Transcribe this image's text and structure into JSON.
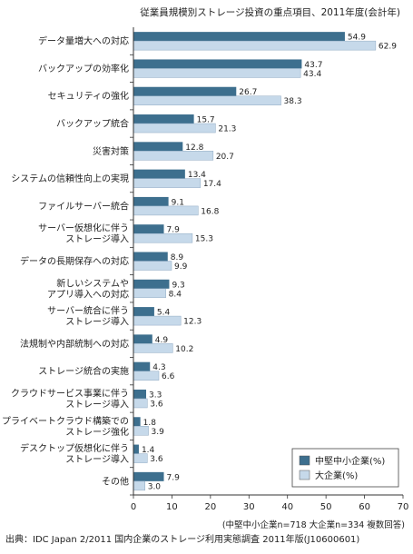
{
  "chart_data": {
    "type": "bar",
    "orientation": "horizontal",
    "title": "従業員規模別ストレージ投資の重点項目、2011年度(会計年)",
    "categories": [
      [
        "データ量増大への対応"
      ],
      [
        "バックアップの効率化"
      ],
      [
        "セキュリティの強化"
      ],
      [
        "バックアップ統合"
      ],
      [
        "災害対策"
      ],
      [
        "システムの信頼性向上の実現"
      ],
      [
        "ファイルサーバー統合"
      ],
      [
        "サーバー仮想化に伴う",
        "ストレージ導入"
      ],
      [
        "データの長期保存への対応"
      ],
      [
        "新しいシステムや",
        "アプリ導入への対応"
      ],
      [
        "サーバー統合に伴う",
        "ストレージ導入"
      ],
      [
        "法規制や内部統制への対応"
      ],
      [
        "ストレージ統合の実施"
      ],
      [
        "クラウドサービス事業に伴う",
        "ストレージ導入"
      ],
      [
        "プライベートクラウド構築での",
        "ストレージ強化"
      ],
      [
        "デスクトップ仮想化に伴う",
        "ストレージ導入"
      ],
      [
        "その他"
      ]
    ],
    "series": [
      {
        "name": "中堅中小企業(%)",
        "color": "#3d6f8e",
        "values": [
          54.9,
          43.7,
          26.7,
          15.7,
          12.8,
          13.4,
          9.1,
          7.9,
          8.9,
          9.3,
          5.4,
          4.9,
          4.3,
          3.3,
          1.8,
          1.4,
          7.9
        ]
      },
      {
        "name": "大企業(%)",
        "color": "#c6d9ea",
        "values": [
          62.9,
          43.4,
          38.3,
          21.3,
          20.7,
          17.4,
          16.8,
          15.3,
          9.9,
          8.4,
          12.3,
          10.2,
          6.6,
          3.6,
          3.9,
          3.6,
          3.0
        ]
      }
    ],
    "xlim": [
      0,
      70
    ],
    "xticks": [
      0,
      10,
      20,
      30,
      40,
      50,
      60,
      70
    ],
    "legend_position": "bottom-right",
    "grid": false,
    "note": "(中堅中小企業n=718 大企業n=334 複数回答)",
    "source": "出典：IDC Japan 2/2011 国内企業のストレージ利用実態調査 2011年版(J10600601)"
  }
}
